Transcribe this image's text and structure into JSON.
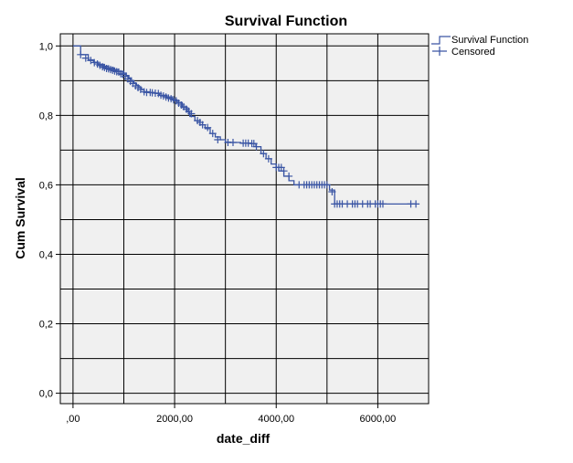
{
  "colors": {
    "background": "#ffffff",
    "plot_background": "#f0f0f0",
    "grid": "#000000",
    "series": "#3a55a4"
  },
  "legend": {
    "position": "top-right",
    "items": [
      {
        "label": "Survival Function",
        "icon": "step-line-icon"
      },
      {
        "label": "Censored",
        "icon": "plus-marker-icon"
      }
    ]
  },
  "chart_data": {
    "type": "line",
    "title": "Survival Function",
    "xlabel": "date_diff",
    "ylabel": "Cum Survival",
    "xlim": [
      -250,
      7000
    ],
    "ylim": [
      -0.03,
      1.035
    ],
    "x_ticks": [
      0,
      2000,
      4000,
      6000
    ],
    "x_tick_labels": [
      ",00",
      "2000,00",
      "4000,00",
      "6000,00"
    ],
    "y_ticks": [
      0.0,
      0.2,
      0.4,
      0.6,
      0.8,
      1.0
    ],
    "y_tick_labels": [
      "0,0",
      "0,2",
      "0,4",
      "0,6",
      "0,8",
      "1,0"
    ],
    "grid": true,
    "series": [
      {
        "name": "Survival Function",
        "style": "step",
        "x": [
          0,
          150,
          300,
          400,
          500,
          600,
          700,
          800,
          900,
          1000,
          1050,
          1100,
          1150,
          1200,
          1250,
          1300,
          1350,
          1400,
          1500,
          1600,
          1700,
          1850,
          1950,
          2050,
          2150,
          2250,
          2300,
          2400,
          2500,
          2600,
          2700,
          2800,
          2900,
          3000,
          3100,
          3300,
          3500,
          3600,
          3700,
          3800,
          3900,
          4000,
          4050,
          4150,
          4250,
          4350,
          4450,
          4500,
          5050,
          5150,
          6750
        ],
        "y": [
          1.0,
          0.975,
          0.96,
          0.953,
          0.947,
          0.942,
          0.937,
          0.932,
          0.927,
          0.922,
          0.915,
          0.908,
          0.9,
          0.893,
          0.886,
          0.88,
          0.874,
          0.868,
          0.866,
          0.864,
          0.858,
          0.853,
          0.845,
          0.837,
          0.823,
          0.81,
          0.797,
          0.785,
          0.773,
          0.762,
          0.748,
          0.738,
          0.73,
          0.723,
          0.722,
          0.72,
          0.719,
          0.71,
          0.69,
          0.675,
          0.66,
          0.65,
          0.64,
          0.625,
          0.612,
          0.6,
          0.6,
          0.6,
          0.585,
          0.545,
          0.545
        ]
      },
      {
        "name": "Censored",
        "style": "marker",
        "x": [
          150,
          250,
          350,
          420,
          480,
          530,
          580,
          620,
          660,
          700,
          740,
          780,
          820,
          860,
          900,
          940,
          980,
          1030,
          1080,
          1130,
          1180,
          1230,
          1280,
          1330,
          1400,
          1450,
          1520,
          1560,
          1620,
          1680,
          1730,
          1780,
          1830,
          1880,
          1930,
          1980,
          2030,
          2080,
          2130,
          2180,
          2230,
          2280,
          2330,
          2450,
          2500,
          2550,
          2650,
          2750,
          2850,
          3050,
          3150,
          3350,
          3400,
          3450,
          3520,
          3560,
          3610,
          3750,
          3850,
          4000,
          4050,
          4100,
          4150,
          4250,
          4450,
          4550,
          4600,
          4650,
          4700,
          4750,
          4800,
          4850,
          4900,
          4950,
          5000,
          5100,
          5150,
          5200,
          5250,
          5300,
          5400,
          5500,
          5550,
          5600,
          5700,
          5800,
          5850,
          5950,
          6000,
          6050,
          6100,
          6650,
          6750
        ],
        "y": [
          0.975,
          0.965,
          0.958,
          0.952,
          0.948,
          0.944,
          0.94,
          0.938,
          0.935,
          0.934,
          0.932,
          0.93,
          0.928,
          0.926,
          0.925,
          0.92,
          0.918,
          0.912,
          0.905,
          0.898,
          0.892,
          0.885,
          0.88,
          0.875,
          0.868,
          0.866,
          0.866,
          0.865,
          0.864,
          0.863,
          0.858,
          0.856,
          0.853,
          0.85,
          0.848,
          0.845,
          0.842,
          0.835,
          0.83,
          0.825,
          0.818,
          0.812,
          0.805,
          0.785,
          0.78,
          0.773,
          0.765,
          0.748,
          0.73,
          0.722,
          0.722,
          0.72,
          0.72,
          0.72,
          0.719,
          0.719,
          0.71,
          0.69,
          0.675,
          0.65,
          0.65,
          0.65,
          0.64,
          0.625,
          0.6,
          0.6,
          0.6,
          0.6,
          0.6,
          0.6,
          0.6,
          0.6,
          0.6,
          0.6,
          0.6,
          0.58,
          0.545,
          0.545,
          0.545,
          0.545,
          0.545,
          0.545,
          0.545,
          0.545,
          0.545,
          0.545,
          0.545,
          0.545,
          0.545,
          0.545,
          0.545,
          0.545,
          0.545
        ]
      }
    ]
  }
}
